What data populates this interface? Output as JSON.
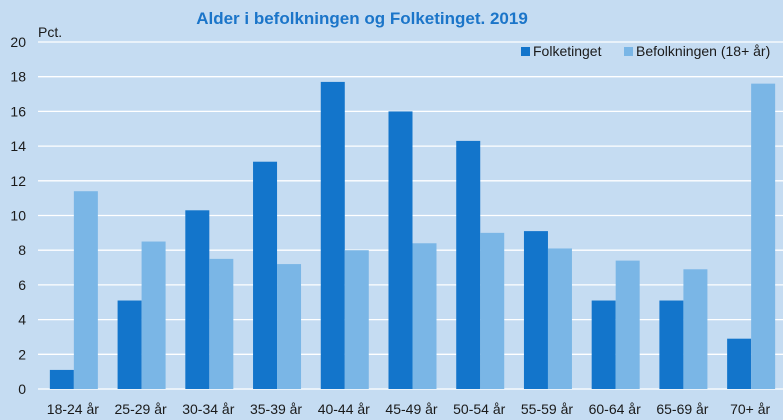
{
  "chart_data": {
    "type": "bar",
    "title": "Alder i befolkningen og Folketinget. 2019",
    "ylabel": "Pct.",
    "xlabel": "",
    "ylim": [
      0,
      20
    ],
    "yticks": [
      0,
      2,
      4,
      6,
      8,
      10,
      12,
      14,
      16,
      18,
      20
    ],
    "grid": true,
    "legend_position": "top-right",
    "categories": [
      "18-24 år",
      "25-29 år",
      "30-34 år",
      "35-39 år",
      "40-44 år",
      "45-49 år",
      "50-54 år",
      "55-59 år",
      "60-64 år",
      "65-69 år",
      "70+ år"
    ],
    "series": [
      {
        "name": "Folketinget",
        "color": "#1375cb",
        "values": [
          1.1,
          5.1,
          10.3,
          13.1,
          17.7,
          16.0,
          14.3,
          9.1,
          5.1,
          5.1,
          2.9
        ]
      },
      {
        "name": "Befolkningen (18+ år)",
        "color": "#7ab6e6",
        "values": [
          11.4,
          8.5,
          7.5,
          7.2,
          8.0,
          8.4,
          9.0,
          8.1,
          7.4,
          6.9,
          17.6
        ]
      }
    ]
  }
}
